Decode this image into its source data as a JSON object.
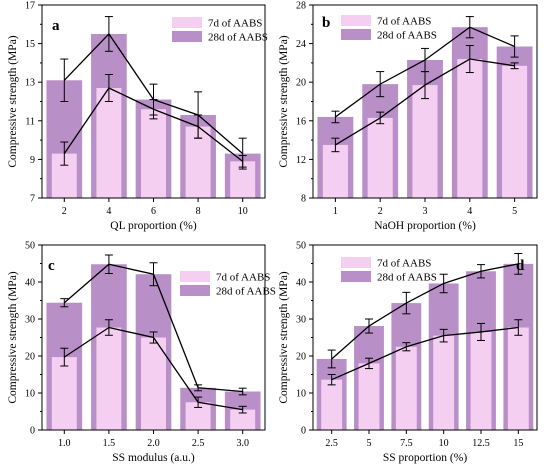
{
  "colors": {
    "bar_7d": "#f5cff2",
    "bar_28d": "#b98fc8",
    "line": "#000000"
  },
  "chart_data": [
    {
      "panel": "a",
      "type": "bar",
      "categories": [
        "2",
        "4",
        "6",
        "8",
        "10"
      ],
      "xlabel": "QL proportion (%)",
      "ylabel": "Compressive strength (MPa)",
      "yticks": [
        "7",
        "9",
        "11",
        "13",
        "15",
        "17"
      ],
      "ylim": [
        7,
        17
      ],
      "legend_position": "top-right",
      "series": [
        {
          "name": "7d of AABS",
          "values": [
            9.3,
            12.7,
            11.6,
            10.7,
            8.9
          ],
          "err": [
            0.6,
            0.7,
            0.5,
            0.6,
            0.3
          ]
        },
        {
          "name": "28d of AABS",
          "values": [
            13.1,
            15.5,
            12.1,
            11.3,
            9.3
          ],
          "err": [
            1.1,
            0.9,
            0.8,
            1.2,
            0.8
          ]
        }
      ]
    },
    {
      "panel": "b",
      "type": "bar",
      "categories": [
        "1",
        "2",
        "3",
        "4",
        "5"
      ],
      "xlabel": "NaOH proportion (%)",
      "ylabel": "Compressive strength (MPa)",
      "yticks": [
        "8",
        "12",
        "16",
        "20",
        "24",
        "28"
      ],
      "ylim": [
        8,
        28
      ],
      "legend_position": "top-left",
      "series": [
        {
          "name": "7d of AABS",
          "values": [
            13.5,
            16.3,
            19.7,
            22.4,
            21.7
          ],
          "err": [
            0.7,
            0.6,
            1.4,
            1.4,
            0.3
          ]
        },
        {
          "name": "28d of AABS",
          "values": [
            16.4,
            19.8,
            22.3,
            25.7,
            23.7
          ],
          "err": [
            0.6,
            1.3,
            1.2,
            1.1,
            1.1
          ]
        }
      ]
    },
    {
      "panel": "c",
      "type": "bar",
      "categories": [
        "1.0",
        "1.5",
        "2.0",
        "2.5",
        "3.0"
      ],
      "xlabel": "SS modulus (a.u.)",
      "ylabel": "Compressive strength (MPa)",
      "yticks": [
        "0",
        "10",
        "20",
        "30",
        "40",
        "50"
      ],
      "ylim": [
        0,
        50
      ],
      "legend_position": "middle-right",
      "series": [
        {
          "name": "7d of AABS",
          "values": [
            19.7,
            27.7,
            25.0,
            7.5,
            5.5
          ],
          "err": [
            2.4,
            2.1,
            1.5,
            1.4,
            0.9
          ]
        },
        {
          "name": "28d of AABS",
          "values": [
            34.4,
            44.8,
            42.1,
            11.4,
            10.4
          ],
          "err": [
            1.1,
            2.5,
            3.1,
            0.8,
            0.9
          ]
        }
      ]
    },
    {
      "panel": "d",
      "type": "bar",
      "categories": [
        "2.5",
        "5",
        "7.5",
        "10",
        "12.5",
        "15"
      ],
      "xlabel": "SS proportion (%)",
      "ylabel": "Compressive strength (MPa)",
      "yticks": [
        "0",
        "10",
        "20",
        "30",
        "40",
        "50"
      ],
      "ylim": [
        0,
        50
      ],
      "legend_position": "top-left",
      "series": [
        {
          "name": "7d of AABS",
          "values": [
            13.6,
            18.0,
            22.5,
            25.5,
            26.5,
            27.7
          ],
          "err": [
            1.4,
            1.4,
            1.1,
            1.7,
            2.3,
            2.1
          ]
        },
        {
          "name": "28d of AABS",
          "values": [
            19.2,
            28.1,
            34.3,
            39.6,
            42.9,
            44.9
          ],
          "err": [
            2.4,
            1.9,
            2.9,
            2.5,
            1.8,
            2.8
          ]
        }
      ]
    }
  ]
}
